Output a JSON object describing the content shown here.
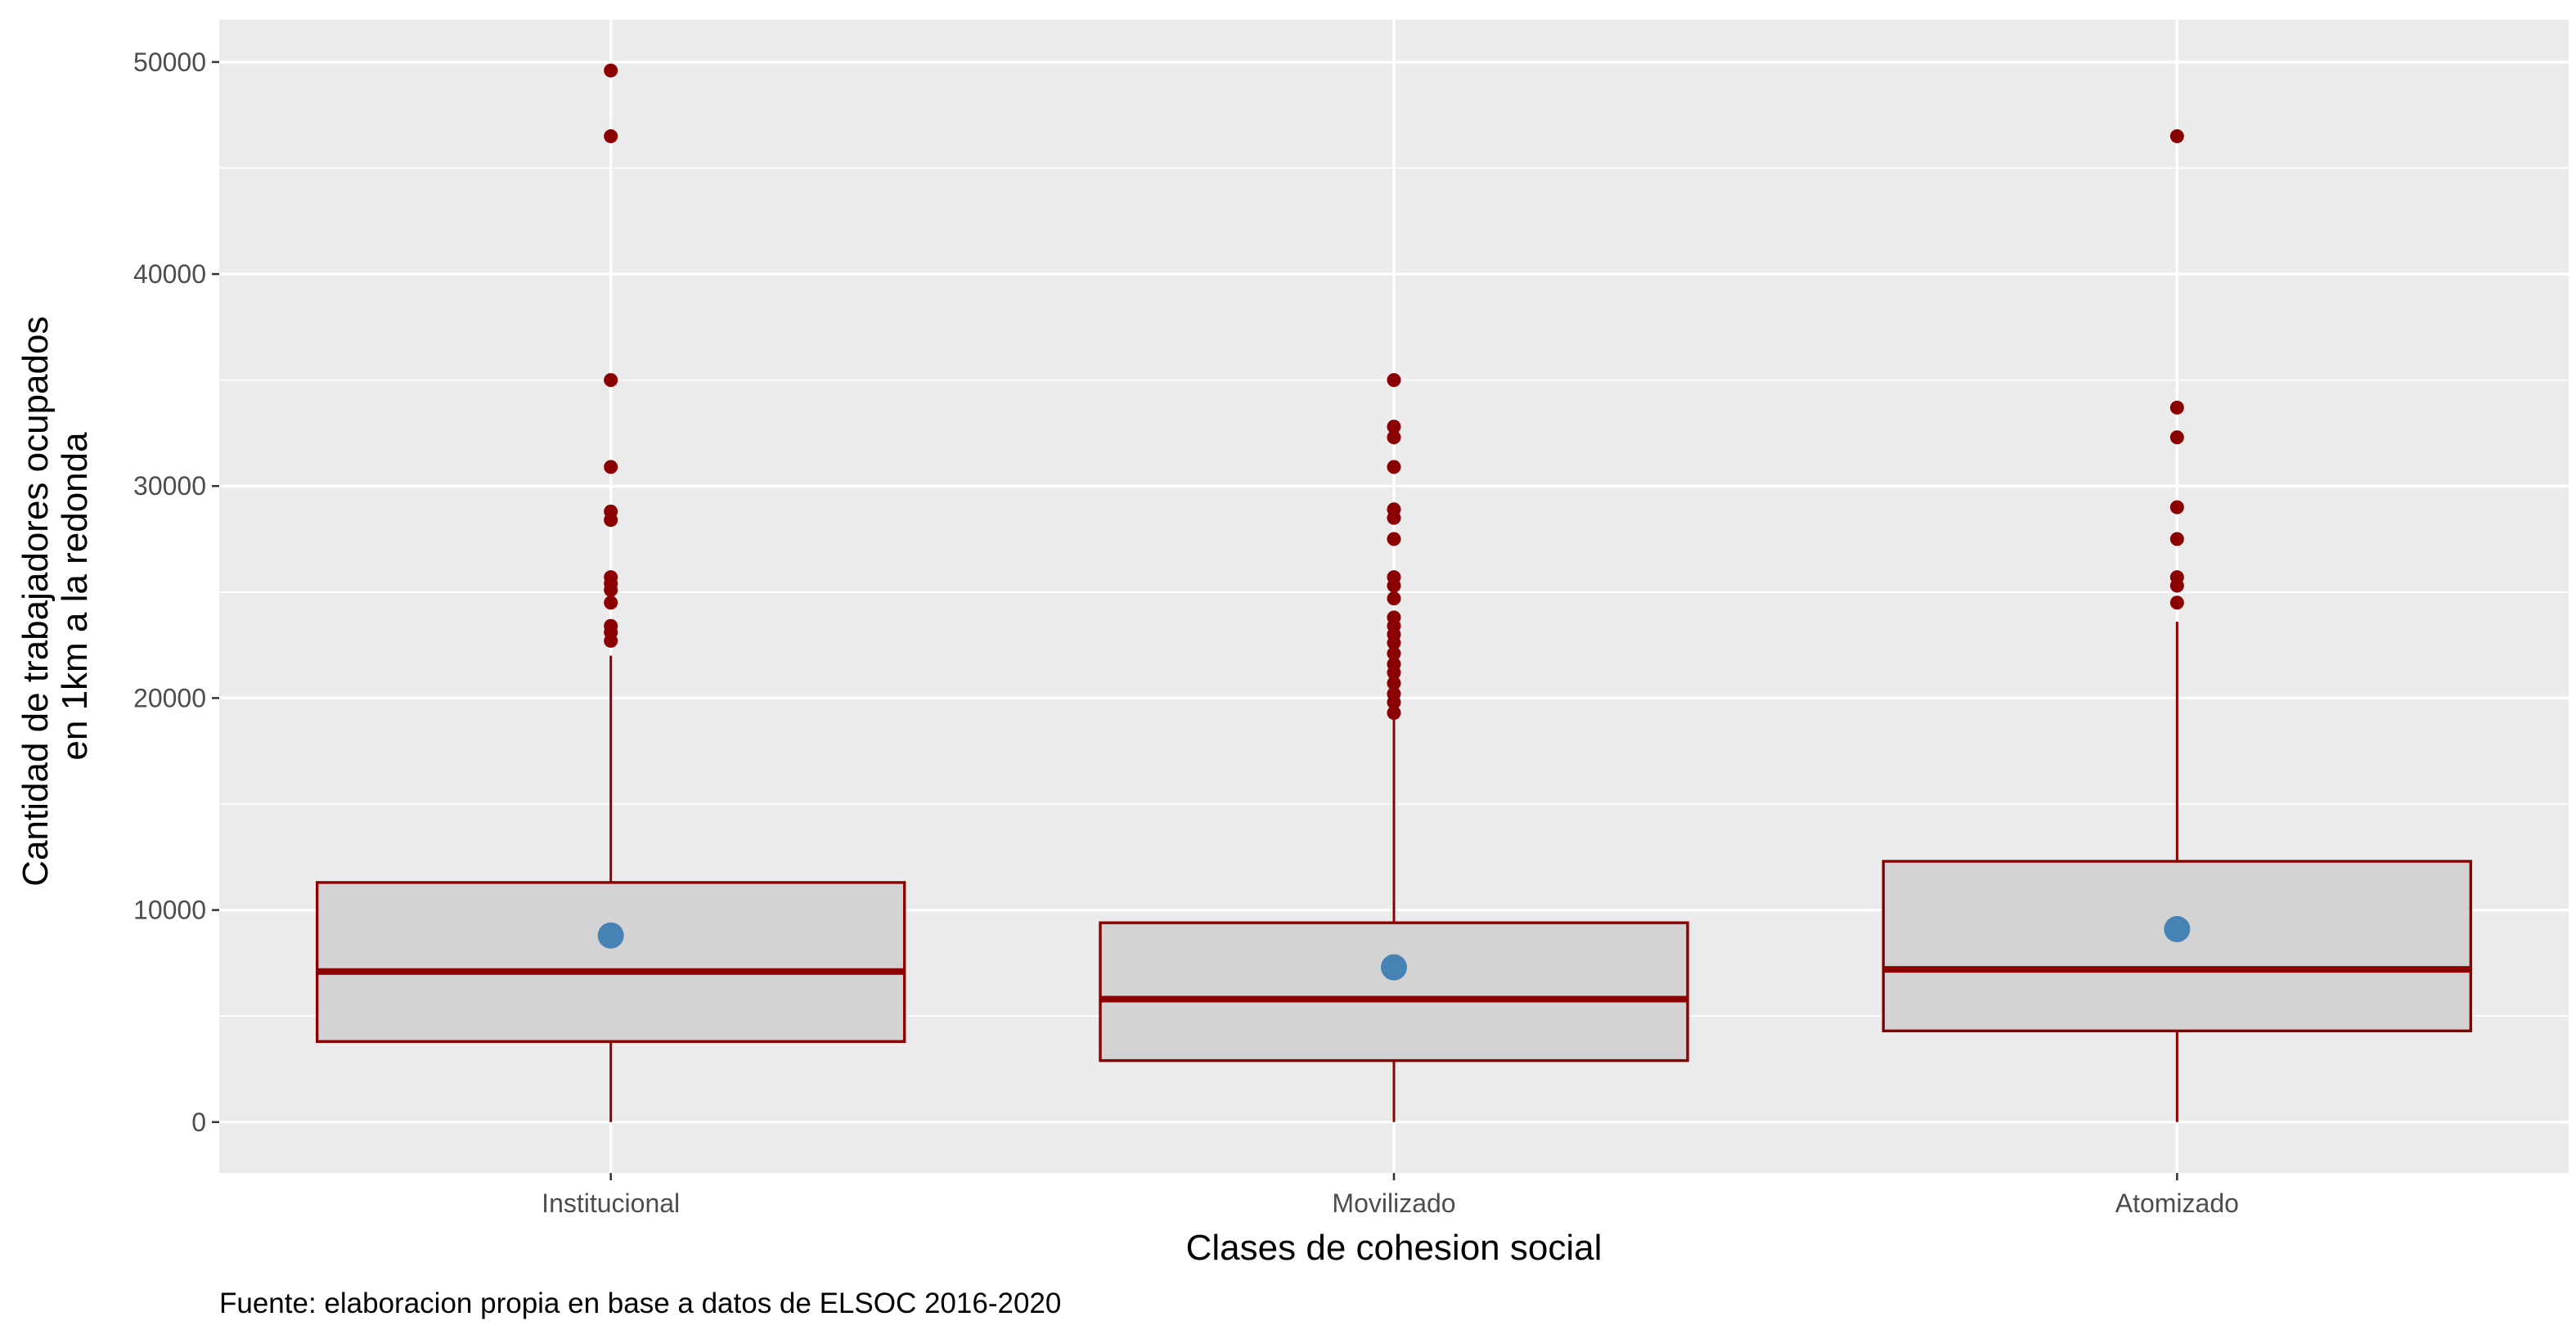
{
  "chart_data": {
    "type": "box",
    "xlabel": "Clases de cohesion social",
    "ylabel_lines": [
      "Cantidad de trabajadores ocupados",
      "en 1km a la redonda"
    ],
    "caption": "Fuente: elaboracion propia en base a datos de ELSOC 2016-2020",
    "ylim": [
      -2400,
      52000
    ],
    "yticks": [
      0,
      10000,
      20000,
      30000,
      40000,
      50000
    ],
    "ytick_labels": [
      "0",
      "10000",
      "20000",
      "30000",
      "40000",
      "50000"
    ],
    "grid": true,
    "colors": {
      "panel": "#ebebeb",
      "grid": "#ffffff",
      "box_fill": "#d3d3d3",
      "box_line": "#8b0000",
      "outlier": "#8b0000",
      "mean_point": "#4682b4"
    },
    "categories": [
      "Institucional",
      "Movilizado",
      "Atomizado"
    ],
    "boxes": [
      {
        "category": "Institucional",
        "whisker_low": 0,
        "q1": 3800,
        "median": 7100,
        "q3": 11300,
        "whisker_high": 22000,
        "mean": 8800,
        "outliers": [
          22700,
          23100,
          23400,
          24500,
          25100,
          25400,
          25700,
          28400,
          28800,
          30900,
          35000,
          46500,
          49600
        ]
      },
      {
        "category": "Movilizado",
        "whisker_low": 0,
        "q1": 2900,
        "median": 5800,
        "q3": 9400,
        "whisker_high": 19000,
        "mean": 7300,
        "outliers": [
          19300,
          19800,
          20200,
          20700,
          21200,
          21600,
          22100,
          22600,
          23000,
          23400,
          23800,
          24700,
          25300,
          25700,
          27500,
          28500,
          28900,
          30900,
          32300,
          32800,
          35000
        ]
      },
      {
        "category": "Atomizado",
        "whisker_low": 0,
        "q1": 4300,
        "median": 7200,
        "q3": 12300,
        "whisker_high": 23600,
        "mean": 9100,
        "outliers": [
          24500,
          25300,
          25700,
          27500,
          29000,
          32300,
          33700,
          46500
        ]
      }
    ]
  }
}
